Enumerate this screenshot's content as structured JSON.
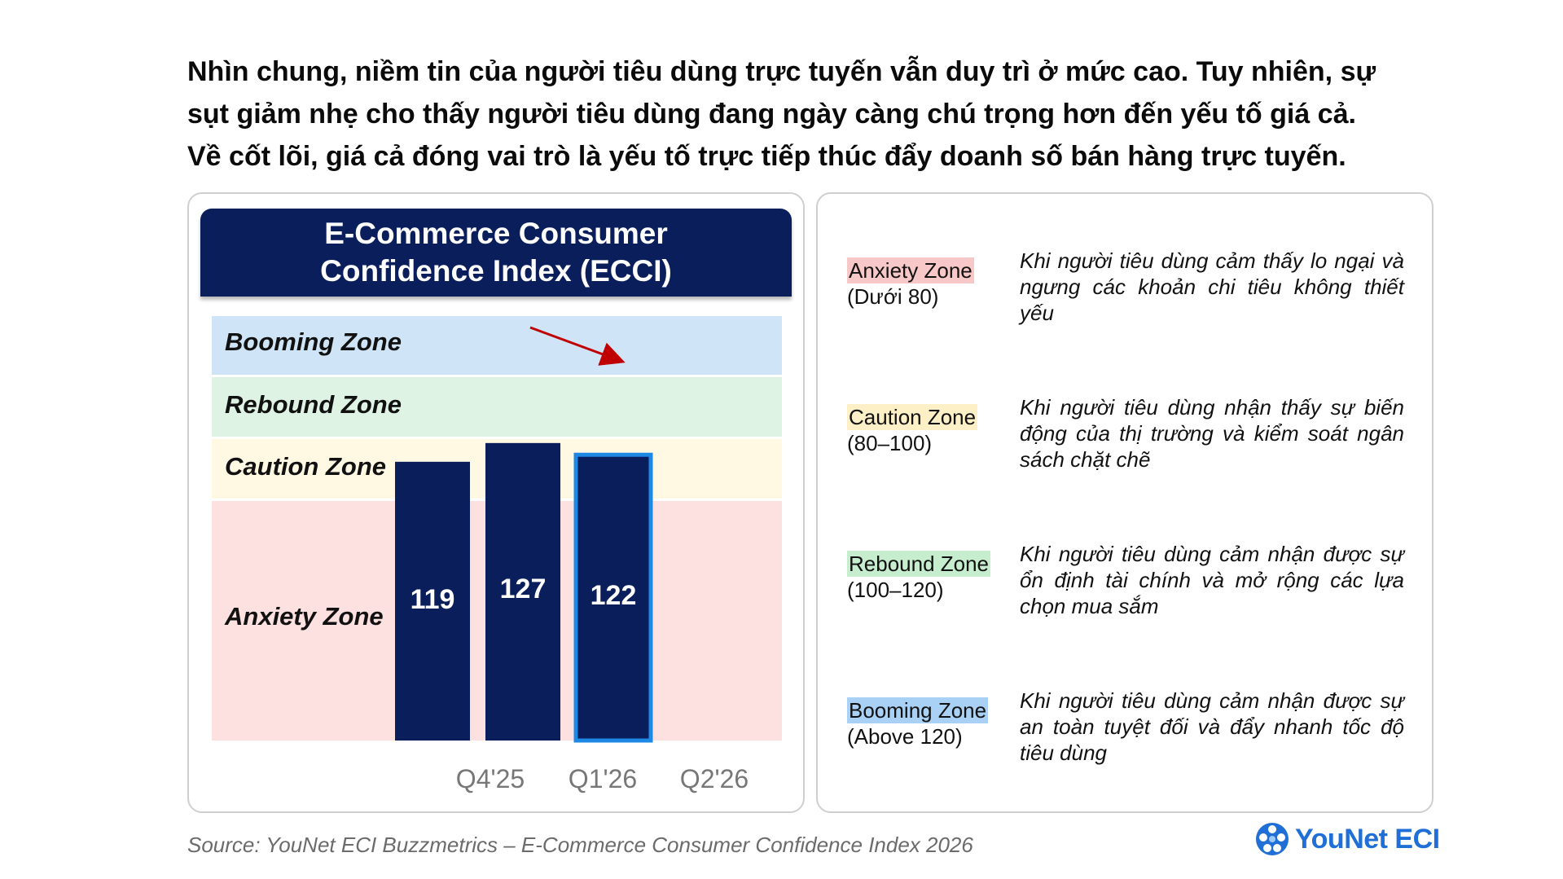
{
  "headline": {
    "line1": "Nhìn chung, niềm tin của người tiêu dùng trực tuyến vẫn duy trì ở mức cao. Tuy nhiên, sự",
    "line2": "sụt giảm nhẹ cho thấy người tiêu dùng đang ngày càng chú trọng hơn đến yếu tố giá cả.",
    "line3": "Về cốt lõi, giá cả đóng vai trò là yếu tố trực tiếp thúc đẩy doanh số bán hàng trực tuyến."
  },
  "chart_data": {
    "type": "bar",
    "title_line1": "E-Commerce Consumer",
    "title_line2": "Confidence Index (ECCI)",
    "categories": [
      "Q4'25",
      "Q1'26",
      "Q2'26"
    ],
    "values": [
      119,
      127,
      122
    ],
    "value_labels": [
      "119",
      "127",
      "122"
    ],
    "highlighted_category": "Q2'26",
    "bar_color": "#0a1e5c",
    "highlight_border_color": "#1e88e5",
    "trend_arrow": {
      "from": "Q1'26",
      "to": "Q2'26",
      "color": "#c00000"
    },
    "zones": [
      {
        "name": "Booming Zone",
        "color": "#cfe4f6"
      },
      {
        "name": "Rebound Zone",
        "color": "#dff3e4"
      },
      {
        "name": "Caution Zone",
        "color": "#fff8e3"
      },
      {
        "name": "Anxiety Zone",
        "color": "#fde0e0"
      }
    ]
  },
  "legend": [
    {
      "zone": "Anxiety Zone",
      "range": "(Dưới 80)",
      "color": "#f8c8c8",
      "desc": "Khi người tiêu dùng cảm thấy lo ngại và ngưng các khoản chi tiêu không thiết yếu"
    },
    {
      "zone": "Caution Zone",
      "range": "(80–100)",
      "color": "#fdefc6",
      "desc": "Khi người tiêu dùng nhận thấy sự biến động của thị trường và kiểm soát ngân sách chặt chẽ"
    },
    {
      "zone": "Rebound Zone",
      "range": "(100–120)",
      "color": "#c6edce",
      "desc": "Khi người tiêu dùng cảm nhận được sự ổn định tài chính và mở rộng các lựa chọn mua sắm"
    },
    {
      "zone": "Booming Zone",
      "range": "(Above 120)",
      "color": "#a9d0f5",
      "desc": "Khi người tiêu dùng cảm nhận được sự an toàn tuyệt đối và đẩy nhanh tốc độ tiêu dùng"
    }
  ],
  "source": "Source: YouNet ECI Buzzmetrics – E-Commerce Consumer Confidence Index 2026",
  "brand": {
    "name": "YouNet ECI",
    "icon": "younet-logo-icon"
  }
}
